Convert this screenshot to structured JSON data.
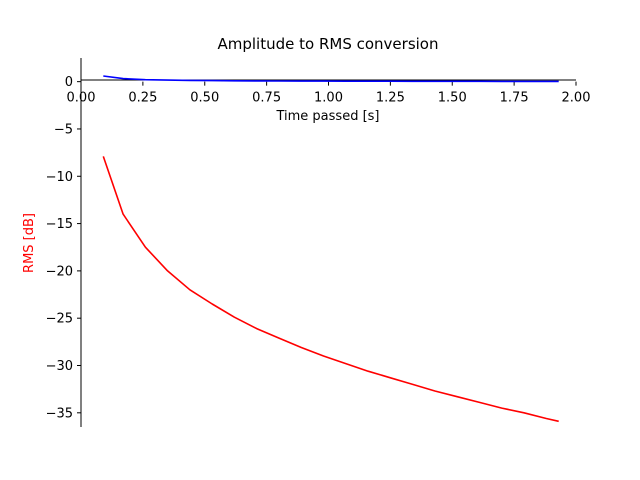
{
  "chart_data": {
    "type": "line",
    "title": "Amplitude to RMS conversion",
    "xlabel": "Time passed [s]",
    "ylabel": "RMS [dB]",
    "xlim": [
      0.0,
      2.0
    ],
    "ylim": [
      -36.5,
      2.5
    ],
    "grid": false,
    "x_ticks": [
      0.0,
      0.25,
      0.5,
      0.75,
      1.0,
      1.25,
      1.5,
      1.75,
      2.0
    ],
    "x_tick_labels": [
      "0.00",
      "0.25",
      "0.50",
      "0.75",
      "1.00",
      "1.25",
      "1.50",
      "1.75",
      "2.00"
    ],
    "y_ticks": [
      0,
      -5,
      -10,
      -15,
      -20,
      -25,
      -30,
      -35
    ],
    "y_tick_labels": [
      "0",
      "−5",
      "−10",
      "−15",
      "−20",
      "−25",
      "−30",
      "−35"
    ],
    "x": [
      0.09,
      0.17,
      0.26,
      0.35,
      0.44,
      0.53,
      0.62,
      0.71,
      0.8,
      0.89,
      0.98,
      1.07,
      1.16,
      1.25,
      1.34,
      1.43,
      1.52,
      1.61,
      1.7,
      1.79,
      1.88,
      1.93
    ],
    "series": [
      {
        "color": "#0000ff",
        "values": [
          0.6,
          0.32,
          0.21,
          0.16,
          0.13,
          0.11,
          0.09,
          0.08,
          0.07,
          0.06,
          0.055,
          0.05,
          0.046,
          0.043,
          0.04,
          0.037,
          0.035,
          0.033,
          0.031,
          0.03,
          0.028,
          0.027
        ]
      },
      {
        "color": "#ff0000",
        "values": [
          -7.9,
          -14.0,
          -17.5,
          -20.0,
          -22.0,
          -23.5,
          -24.9,
          -26.1,
          -27.1,
          -28.1,
          -29.0,
          -29.8,
          -30.6,
          -31.3,
          -32.0,
          -32.7,
          -33.3,
          -33.9,
          -34.5,
          -35.0,
          -35.6,
          -35.9
        ]
      }
    ]
  }
}
